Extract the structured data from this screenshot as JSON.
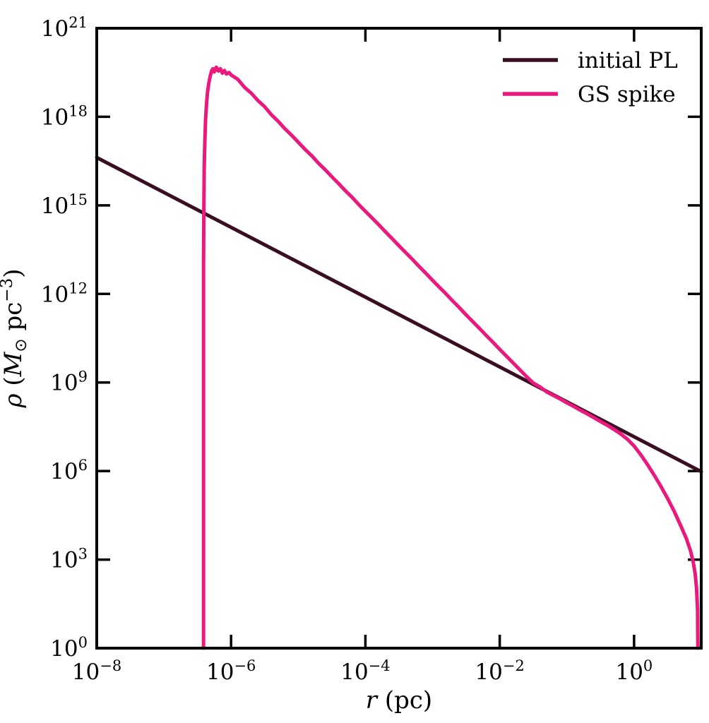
{
  "figure": {
    "background": "#ffffff",
    "text_color": "#000000",
    "axis_color": "#000000"
  },
  "chart_data": {
    "type": "line",
    "title": "",
    "xlabel": "r (pc)",
    "ylabel": "ρ (M⊙ pc⁻³)",
    "xlabel_parts": [
      {
        "t": "r",
        "italic": true
      },
      {
        "t": " (pc)"
      }
    ],
    "ylabel_parts": [
      {
        "t": "ρ",
        "italic": true
      },
      {
        "t": " ("
      },
      {
        "t": "M",
        "italic": true
      },
      {
        "t": "⊙",
        "script": "sub",
        "sans": true
      },
      {
        "t": " pc"
      },
      {
        "t": "−3",
        "script": "sup"
      },
      {
        "t": ")"
      }
    ],
    "xscale": "log",
    "yscale": "log",
    "xlim_exponents": [
      -8,
      1
    ],
    "ylim_exponents": [
      0,
      21
    ],
    "x_tick_exponents": [
      -8,
      -6,
      -4,
      -2,
      0
    ],
    "y_tick_exponents": [
      21,
      18,
      15,
      12,
      9,
      6,
      3,
      0
    ],
    "tick_mantissa": "10",
    "grid": false,
    "legend": {
      "position": "upper right",
      "entries": [
        {
          "label": "initial PL",
          "color": "#3A0E22"
        },
        {
          "label": "GS spike",
          "color": "#E9197D"
        }
      ]
    },
    "series": [
      {
        "name": "initial PL",
        "color": "#3A0E22",
        "linewidth": 5,
        "points_log10": [
          [
            -8,
            16.62
          ],
          [
            1,
            5.98
          ]
        ]
      },
      {
        "name": "GS spike",
        "color": "#E9197D",
        "linewidth": 5,
        "points_log10": [
          [
            -6.41,
            0
          ],
          [
            -6.41,
            5
          ],
          [
            -6.41,
            10
          ],
          [
            -6.41,
            13
          ],
          [
            -6.405,
            15
          ],
          [
            -6.4,
            16.3
          ],
          [
            -6.39,
            17.2
          ],
          [
            -6.38,
            17.9
          ],
          [
            -6.365,
            18.45
          ],
          [
            -6.35,
            18.85
          ],
          [
            -6.33,
            19.15
          ],
          [
            -6.31,
            19.38
          ],
          [
            -6.29,
            19.55
          ],
          [
            -6.27,
            19.63
          ],
          [
            -6.25,
            19.52
          ],
          [
            -6.22,
            19.68
          ],
          [
            -6.19,
            19.55
          ],
          [
            -6.16,
            19.63
          ],
          [
            -6.13,
            19.48
          ],
          [
            -6.1,
            19.57
          ],
          [
            -6.07,
            19.45
          ],
          [
            -6.03,
            19.5
          ],
          [
            -6.0,
            19.42
          ],
          [
            -5.9,
            19.27
          ],
          [
            -5.8,
            19.0
          ],
          [
            -5.7,
            18.8
          ],
          [
            -5.6,
            18.55
          ],
          [
            -5.5,
            18.34
          ],
          [
            -5.4,
            18.07
          ],
          [
            -5.3,
            17.85
          ],
          [
            -5.2,
            17.6
          ],
          [
            -5.1,
            17.38
          ],
          [
            -5.0,
            17.14
          ],
          [
            -4.9,
            16.9
          ],
          [
            -4.8,
            16.68
          ],
          [
            -4.7,
            16.43
          ],
          [
            -4.6,
            16.21
          ],
          [
            -4.5,
            15.97
          ],
          [
            -4.4,
            15.74
          ],
          [
            -4.3,
            15.5
          ],
          [
            -4.2,
            15.28
          ],
          [
            -4.1,
            15.03
          ],
          [
            -4.0,
            14.8
          ],
          [
            -3.9,
            14.57
          ],
          [
            -3.8,
            14.34
          ],
          [
            -3.7,
            14.1
          ],
          [
            -3.6,
            13.87
          ],
          [
            -3.5,
            13.63
          ],
          [
            -3.4,
            13.4
          ],
          [
            -3.3,
            13.17
          ],
          [
            -3.2,
            12.93
          ],
          [
            -3.1,
            12.7
          ],
          [
            -3.0,
            12.46
          ],
          [
            -2.9,
            12.23
          ],
          [
            -2.8,
            12.0
          ],
          [
            -2.7,
            11.76
          ],
          [
            -2.6,
            11.53
          ],
          [
            -2.5,
            11.29
          ],
          [
            -2.4,
            11.06
          ],
          [
            -2.3,
            10.83
          ],
          [
            -2.2,
            10.59
          ],
          [
            -2.1,
            10.36
          ],
          [
            -2.0,
            10.12
          ],
          [
            -1.9,
            9.89
          ],
          [
            -1.8,
            9.66
          ],
          [
            -1.7,
            9.43
          ],
          [
            -1.6,
            9.2
          ],
          [
            -1.5,
            8.98
          ],
          [
            -1.4,
            8.85
          ],
          [
            -1.3,
            8.68
          ],
          [
            -1.2,
            8.56
          ],
          [
            -1.1,
            8.44
          ],
          [
            -1.0,
            8.31
          ],
          [
            -0.9,
            8.19
          ],
          [
            -0.8,
            8.06
          ],
          [
            -0.7,
            7.94
          ],
          [
            -0.6,
            7.81
          ],
          [
            -0.5,
            7.68
          ],
          [
            -0.4,
            7.55
          ],
          [
            -0.3,
            7.41
          ],
          [
            -0.2,
            7.26
          ],
          [
            -0.1,
            7.08
          ],
          [
            0.0,
            6.85
          ],
          [
            0.1,
            6.55
          ],
          [
            0.2,
            6.22
          ],
          [
            0.3,
            5.86
          ],
          [
            0.4,
            5.48
          ],
          [
            0.5,
            5.07
          ],
          [
            0.6,
            4.62
          ],
          [
            0.7,
            4.12
          ],
          [
            0.78,
            3.7
          ],
          [
            0.84,
            3.3
          ],
          [
            0.88,
            2.92
          ],
          [
            0.91,
            2.52
          ],
          [
            0.93,
            2.05
          ],
          [
            0.945,
            1.3
          ],
          [
            0.95,
            0
          ]
        ]
      }
    ]
  }
}
